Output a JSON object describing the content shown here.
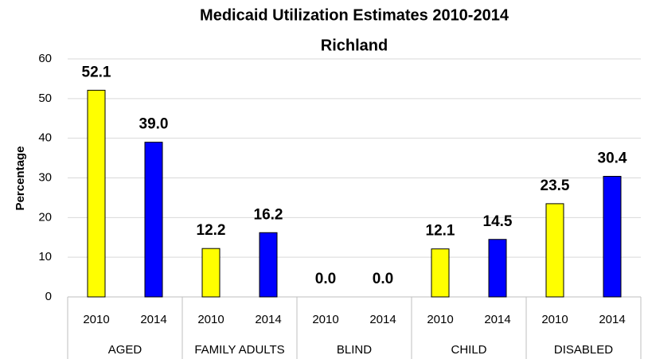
{
  "chart_data": {
    "type": "bar",
    "title": "Medicaid Utilization Estimates 2010-2014",
    "subtitle": "Richland",
    "y_label": "Percentage",
    "categories": [
      "AGED",
      "FAMILY ADULTS",
      "BLIND",
      "CHILD",
      "DISABLED"
    ],
    "series": [
      {
        "name": "2010",
        "color": "#ffff00",
        "values": [
          52.1,
          12.2,
          0,
          12.1,
          23.5
        ],
        "value_labels": [
          "52.1",
          "12.2",
          "0.0",
          "12.1",
          "23.5"
        ]
      },
      {
        "name": "2014",
        "color": "#0000ff",
        "values": [
          39,
          16.2,
          0,
          14.5,
          30.4
        ],
        "value_labels": [
          "39.0",
          "16.2",
          "0.0",
          "14.5",
          "30.4"
        ]
      }
    ],
    "ylim": [
      0,
      60
    ],
    "yticks": [
      0,
      10,
      20,
      30,
      40,
      50,
      60
    ],
    "grid": true
  }
}
